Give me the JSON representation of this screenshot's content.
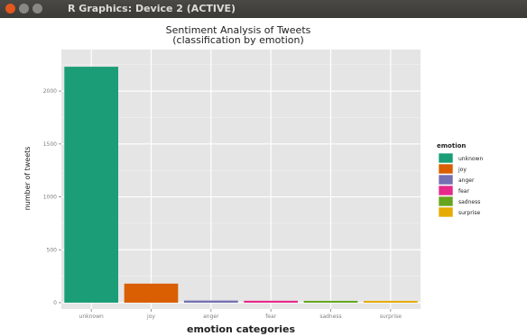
{
  "window": {
    "title": "R Graphics: Device 2 (ACTIVE)"
  },
  "chart_data": {
    "type": "bar",
    "title": "Sentiment Analysis of Tweets",
    "subtitle": "(classification by emotion)",
    "xlabel": "emotion categories",
    "ylabel": "number of tweets",
    "categories": [
      "unknown",
      "joy",
      "anger",
      "fear",
      "sadness",
      "surprise"
    ],
    "values": [
      2230,
      180,
      20,
      18,
      16,
      8
    ],
    "colors": [
      "#1b9e77",
      "#d95f02",
      "#7570b3",
      "#e7298a",
      "#66a61e",
      "#e6ab02"
    ],
    "ylim": [
      0,
      2350
    ],
    "yticks": [
      0,
      500,
      1000,
      1500,
      2000
    ],
    "ytick_labels": [
      "0",
      "500",
      "1000",
      "1500",
      "2000"
    ],
    "grid": true,
    "legend": {
      "title": "emotion",
      "position": "right",
      "entries": [
        "unknown",
        "joy",
        "anger",
        "fear",
        "sadness",
        "surprise"
      ]
    }
  }
}
